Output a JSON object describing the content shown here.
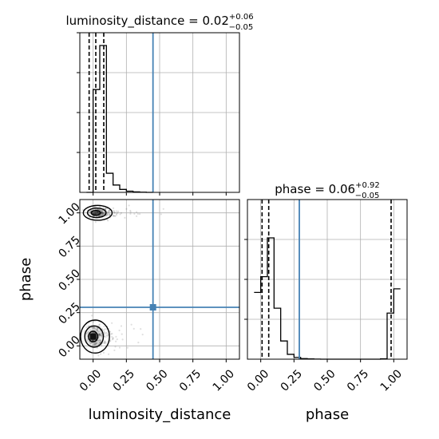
{
  "chart_data": [
    {
      "type": "histogram",
      "panel": "luminosity_distance marginal",
      "title": {
        "name": "luminosity_distance",
        "median": "0.02",
        "plus": "+0.06",
        "minus": "−0.05"
      },
      "x": [
        -0.05,
        0.0,
        0.05,
        0.1,
        0.15,
        0.2,
        0.25,
        0.3,
        0.35,
        0.4,
        0.45
      ],
      "values": [
        0.0,
        0.7,
        1.0,
        0.13,
        0.05,
        0.02,
        0.008,
        0.003,
        0.001,
        0.0
      ],
      "xlim": [
        -0.1,
        1.1
      ],
      "quantile_lines": [
        -0.03,
        0.02,
        0.08
      ],
      "truth_x": 0.45,
      "grid": true
    },
    {
      "type": "histogram",
      "panel": "phase marginal",
      "title": {
        "name": "phase",
        "median": "0.06",
        "plus": "+0.92",
        "minus": "−0.05"
      },
      "x": [
        -0.05,
        0.0,
        0.05,
        0.1,
        0.15,
        0.2,
        0.25,
        0.3,
        0.35,
        0.4,
        0.45,
        0.5,
        0.55,
        0.6,
        0.65,
        0.7,
        0.75,
        0.8,
        0.85,
        0.9,
        0.95,
        1.0,
        1.05
      ],
      "values": [
        0.55,
        0.68,
        1.0,
        0.42,
        0.15,
        0.04,
        0.015,
        0.005,
        0.002,
        0.001,
        0.0,
        0.0,
        0.0,
        0.0,
        0.0,
        0.0,
        0.0,
        0.0,
        0.0,
        0.003,
        0.38,
        0.58
      ],
      "xlim": [
        -0.1,
        1.1
      ],
      "quantile_lines": [
        0.01,
        0.06,
        0.98
      ],
      "truth_x": 0.29,
      "grid": true
    },
    {
      "type": "scatter",
      "panel": "2D joint",
      "xlabel": "luminosity_distance",
      "ylabel": "phase",
      "xlim": [
        -0.1,
        1.1
      ],
      "ylim": [
        -0.1,
        1.1
      ],
      "xticks": [
        "0.00",
        "0.25",
        "0.50",
        "0.75",
        "1.00"
      ],
      "yticks": [
        "0.00",
        "0.25",
        "0.50",
        "0.75",
        "1.00"
      ],
      "xtick_values": [
        0.0,
        0.25,
        0.5,
        0.75,
        1.0
      ],
      "ytick_values": [
        0.0,
        0.25,
        0.5,
        0.75,
        1.0
      ],
      "truth_point": [
        0.45,
        0.29
      ],
      "clusters": [
        {
          "center": [
            0.02,
            1.0
          ],
          "spread": [
            0.05,
            0.02
          ]
        },
        {
          "center": [
            0.0,
            0.07
          ],
          "spread": [
            0.05,
            0.05
          ]
        }
      ],
      "contour_levels": [
        "inner",
        "middle",
        "outer"
      ],
      "grid": true
    }
  ],
  "colors": {
    "truth": "#4682b4",
    "hist": "#000000",
    "grid": "#b0b0b0",
    "points": "#000000"
  }
}
